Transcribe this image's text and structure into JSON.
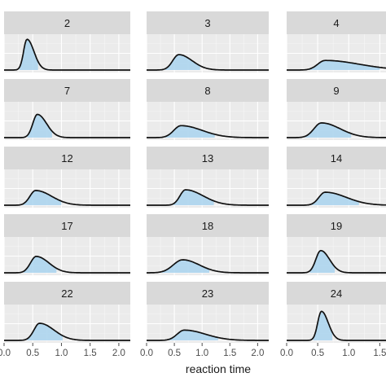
{
  "chart_data": {
    "type": "area",
    "xlabel": "reaction time",
    "columns": [
      {
        "xlim": [
          0.0,
          2.2
        ],
        "ticks": [
          0.0,
          0.5,
          1.0,
          1.5,
          2.0
        ],
        "tick_labels": [
          "0.0",
          "0.5",
          "1.0",
          "1.5",
          "2.0"
        ]
      },
      {
        "xlim": [
          0.0,
          2.2
        ],
        "ticks": [
          0.0,
          0.5,
          1.0,
          1.5,
          2.0
        ],
        "tick_labels": [
          "0.0",
          "0.5",
          "1.0",
          "1.5",
          "2.0"
        ]
      },
      {
        "xlim": [
          0.0,
          1.6
        ],
        "ticks": [
          0.0,
          0.5,
          1.0,
          1.5
        ],
        "tick_labels": [
          "0.0",
          "0.5",
          "1.0",
          "1.5"
        ]
      }
    ],
    "panels": [
      {
        "label": "2",
        "col": 0,
        "mode": 0.4,
        "peak": 0.9,
        "left": 0.06,
        "right": 0.12
      },
      {
        "label": "3",
        "col": 1,
        "mode": 0.58,
        "peak": 0.45,
        "left": 0.11,
        "right": 0.24
      },
      {
        "label": "4",
        "col": 2,
        "mode": 0.62,
        "peak": 0.28,
        "left": 0.12,
        "right": 0.55
      },
      {
        "label": "7",
        "col": 0,
        "mode": 0.58,
        "peak": 0.68,
        "left": 0.08,
        "right": 0.16
      },
      {
        "label": "8",
        "col": 1,
        "mode": 0.62,
        "peak": 0.35,
        "left": 0.13,
        "right": 0.38
      },
      {
        "label": "9",
        "col": 2,
        "mode": 0.56,
        "peak": 0.43,
        "left": 0.12,
        "right": 0.3
      },
      {
        "label": "12",
        "col": 0,
        "mode": 0.55,
        "peak": 0.43,
        "left": 0.1,
        "right": 0.28
      },
      {
        "label": "13",
        "col": 1,
        "mode": 0.7,
        "peak": 0.45,
        "left": 0.1,
        "right": 0.32
      },
      {
        "label": "14",
        "col": 2,
        "mode": 0.62,
        "peak": 0.38,
        "left": 0.1,
        "right": 0.34
      },
      {
        "label": "17",
        "col": 0,
        "mode": 0.56,
        "peak": 0.48,
        "left": 0.1,
        "right": 0.22
      },
      {
        "label": "18",
        "col": 1,
        "mode": 0.65,
        "peak": 0.38,
        "left": 0.17,
        "right": 0.3
      },
      {
        "label": "19",
        "col": 2,
        "mode": 0.55,
        "peak": 0.65,
        "left": 0.08,
        "right": 0.14
      },
      {
        "label": "22",
        "col": 0,
        "mode": 0.62,
        "peak": 0.5,
        "left": 0.1,
        "right": 0.25
      },
      {
        "label": "23",
        "col": 1,
        "mode": 0.68,
        "peak": 0.3,
        "left": 0.13,
        "right": 0.38
      },
      {
        "label": "24",
        "col": 2,
        "mode": 0.56,
        "peak": 0.85,
        "left": 0.06,
        "right": 0.11
      }
    ]
  }
}
